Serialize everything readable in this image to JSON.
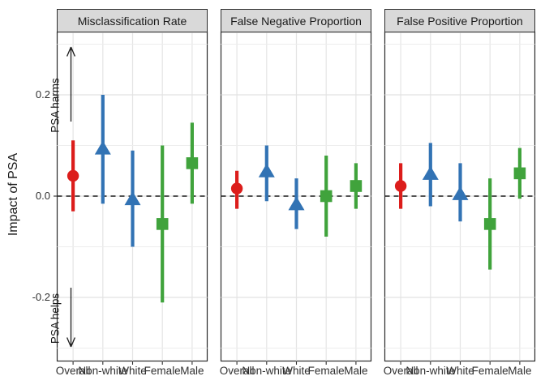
{
  "chart_data": {
    "type": "scatter",
    "title": "",
    "ylabel": "Impact of PSA",
    "categories": [
      "Overall",
      "Non-white",
      "White",
      "Female",
      "Male"
    ],
    "category_groups": [
      "overall",
      "race",
      "race",
      "sex",
      "sex"
    ],
    "groups": {
      "overall": {
        "color": "#DC1D1B",
        "marker": "circle"
      },
      "race": {
        "color": "#3273B4",
        "marker": "triangle"
      },
      "sex": {
        "color": "#40A33C",
        "marker": "square"
      }
    },
    "y_ticks": [
      "0.2",
      "0.0",
      "-0.2"
    ],
    "ylim": [
      -0.325,
      0.325
    ],
    "y_major_gridlines": [
      0.2,
      0,
      -0.2
    ],
    "y_minor_gridlines": [
      0.3,
      0.1,
      -0.1,
      -0.3
    ],
    "zero_line_style": "dashed",
    "legend": "none",
    "facets": [
      {
        "title": "Misclassification Rate",
        "points": [
          {
            "category": "Overall",
            "estimate": 0.04,
            "lower": -0.03,
            "upper": 0.11
          },
          {
            "category": "Non-white",
            "estimate": 0.095,
            "lower": -0.015,
            "upper": 0.2
          },
          {
            "category": "White",
            "estimate": -0.005,
            "lower": -0.1,
            "upper": 0.09
          },
          {
            "category": "Female",
            "estimate": -0.055,
            "lower": -0.21,
            "upper": 0.1
          },
          {
            "category": "Male",
            "estimate": 0.065,
            "lower": -0.015,
            "upper": 0.145
          }
        ]
      },
      {
        "title": "False Negative Proportion",
        "points": [
          {
            "category": "Overall",
            "estimate": 0.015,
            "lower": -0.025,
            "upper": 0.05
          },
          {
            "category": "Non-white",
            "estimate": 0.05,
            "lower": -0.01,
            "upper": 0.1
          },
          {
            "category": "White",
            "estimate": -0.015,
            "lower": -0.065,
            "upper": 0.035
          },
          {
            "category": "Female",
            "estimate": 0.0,
            "lower": -0.08,
            "upper": 0.08
          },
          {
            "category": "Male",
            "estimate": 0.02,
            "lower": -0.025,
            "upper": 0.065
          }
        ]
      },
      {
        "title": "False Positive Proportion",
        "points": [
          {
            "category": "Overall",
            "estimate": 0.02,
            "lower": -0.025,
            "upper": 0.065
          },
          {
            "category": "Non-white",
            "estimate": 0.045,
            "lower": -0.02,
            "upper": 0.105
          },
          {
            "category": "White",
            "estimate": 0.005,
            "lower": -0.05,
            "upper": 0.065
          },
          {
            "category": "Female",
            "estimate": -0.055,
            "lower": -0.145,
            "upper": 0.035
          },
          {
            "category": "Male",
            "estimate": 0.045,
            "lower": -0.005,
            "upper": 0.095
          }
        ]
      }
    ],
    "annotations": [
      {
        "text": "PSA harms",
        "arrow": "up"
      },
      {
        "text": "PSA helps",
        "arrow": "down"
      }
    ]
  }
}
